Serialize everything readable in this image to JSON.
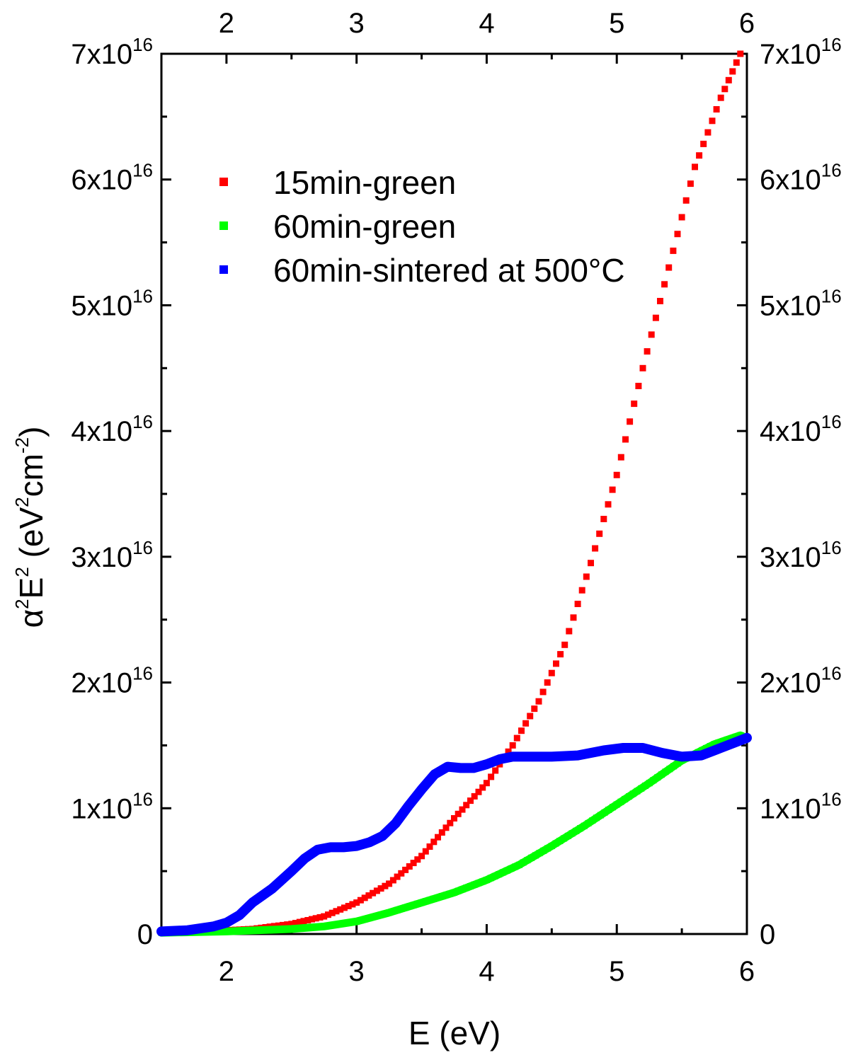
{
  "chart_data": {
    "type": "scatter",
    "xlabel": "E (eV)",
    "ylabel": {
      "symbol": "α",
      "sup1": "2",
      "var": "E",
      "sup2": "2",
      "unit_open": " (eV",
      "sup3": "2",
      "unit_mid": "cm",
      "sup4": "-2",
      "unit_close": ")"
    },
    "xlim": [
      1.5,
      6
    ],
    "ylim": [
      0,
      7e+16
    ],
    "x_ticks": [
      "2",
      "3",
      "4",
      "5",
      "6"
    ],
    "y_ticks": [
      {
        "value": 0,
        "label": "0",
        "exponent": ""
      },
      {
        "value": 1e+16,
        "label": "1x10",
        "exponent": "16"
      },
      {
        "value": 2e+16,
        "label": "2x10",
        "exponent": "16"
      },
      {
        "value": 3e+16,
        "label": "3x10",
        "exponent": "16"
      },
      {
        "value": 4e+16,
        "label": "4x10",
        "exponent": "16"
      },
      {
        "value": 5e+16,
        "label": "5x10",
        "exponent": "16"
      },
      {
        "value": 6e+16,
        "label": "6x10",
        "exponent": "16"
      },
      {
        "value": 7e+16,
        "label": "7x10",
        "exponent": "16"
      }
    ],
    "grid": false,
    "legend_position": "top-left",
    "series": [
      {
        "name": "15min-green",
        "color": "#ff0000",
        "points": [
          [
            1.5,
            0.02
          ],
          [
            2.0,
            0.03
          ],
          [
            2.2,
            0.04
          ],
          [
            2.5,
            0.08
          ],
          [
            2.75,
            0.14
          ],
          [
            3.0,
            0.25
          ],
          [
            3.25,
            0.4
          ],
          [
            3.5,
            0.62
          ],
          [
            3.75,
            0.92
          ],
          [
            4.0,
            1.2
          ],
          [
            4.2,
            1.5
          ],
          [
            4.4,
            1.85
          ],
          [
            4.6,
            2.3
          ],
          [
            4.8,
            2.95
          ],
          [
            5.0,
            3.65
          ],
          [
            5.2,
            4.5
          ],
          [
            5.4,
            5.3
          ],
          [
            5.6,
            6.1
          ],
          [
            5.8,
            6.65
          ],
          [
            5.95,
            7.0
          ]
        ]
      },
      {
        "name": "60min-green",
        "color": "#00ff00",
        "points": [
          [
            1.5,
            0.01
          ],
          [
            2.0,
            0.02
          ],
          [
            2.5,
            0.04
          ],
          [
            2.75,
            0.06
          ],
          [
            3.0,
            0.1
          ],
          [
            3.25,
            0.17
          ],
          [
            3.5,
            0.25
          ],
          [
            3.75,
            0.33
          ],
          [
            4.0,
            0.43
          ],
          [
            4.25,
            0.55
          ],
          [
            4.5,
            0.7
          ],
          [
            4.75,
            0.86
          ],
          [
            5.0,
            1.03
          ],
          [
            5.25,
            1.2
          ],
          [
            5.5,
            1.38
          ],
          [
            5.75,
            1.51
          ],
          [
            5.95,
            1.58
          ],
          [
            6.0,
            1.56
          ]
        ]
      },
      {
        "name": "60min-sintered at 500°C",
        "color": "#0000ff",
        "points": [
          [
            1.5,
            0.02
          ],
          [
            1.7,
            0.03
          ],
          [
            1.9,
            0.06
          ],
          [
            2.0,
            0.09
          ],
          [
            2.1,
            0.15
          ],
          [
            2.2,
            0.25
          ],
          [
            2.35,
            0.36
          ],
          [
            2.5,
            0.5
          ],
          [
            2.6,
            0.6
          ],
          [
            2.7,
            0.67
          ],
          [
            2.8,
            0.69
          ],
          [
            2.9,
            0.69
          ],
          [
            3.0,
            0.7
          ],
          [
            3.1,
            0.73
          ],
          [
            3.2,
            0.78
          ],
          [
            3.3,
            0.88
          ],
          [
            3.4,
            1.02
          ],
          [
            3.5,
            1.15
          ],
          [
            3.6,
            1.27
          ],
          [
            3.7,
            1.33
          ],
          [
            3.8,
            1.32
          ],
          [
            3.9,
            1.32
          ],
          [
            4.0,
            1.35
          ],
          [
            4.1,
            1.39
          ],
          [
            4.2,
            1.41
          ],
          [
            4.5,
            1.41
          ],
          [
            4.7,
            1.42
          ],
          [
            4.9,
            1.46
          ],
          [
            5.05,
            1.48
          ],
          [
            5.2,
            1.48
          ],
          [
            5.35,
            1.44
          ],
          [
            5.5,
            1.41
          ],
          [
            5.65,
            1.42
          ],
          [
            5.8,
            1.48
          ],
          [
            6.0,
            1.56
          ]
        ]
      }
    ]
  }
}
